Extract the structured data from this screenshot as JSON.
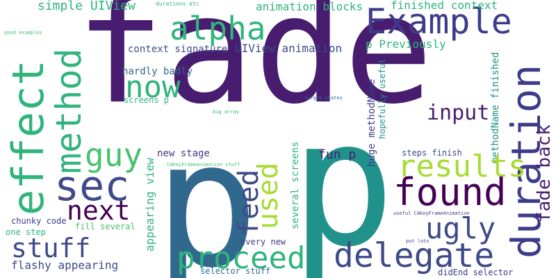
{
  "words": [
    "fade",
    "p",
    "p",
    "Example",
    "alpha",
    "duration",
    "effect",
    "method",
    "sec",
    "guy",
    "now",
    "used",
    "found",
    "results",
    "feed",
    "next",
    "stuff",
    "proceed",
    "delegate",
    "ugly",
    "fade back",
    "input",
    "simple UIView",
    "animation blocks",
    "finished context",
    "context signature",
    "UIView animation",
    "p Previously",
    "hardly badly",
    "screens p",
    "methodName finished",
    "huge methodName",
    "hopefully useful",
    "appearing view",
    "new stage",
    "fun p",
    "several screens",
    "steps finish",
    "chunky code",
    "one step",
    "fill several",
    "every new",
    "flashy appearing",
    "selector stuff",
    "didEnd selector",
    "durations etc",
    "good examples",
    "target states",
    "big array",
    "CAKeyFrameAnimation stuff",
    "useful CAKeyFrameAnimation",
    "put lots"
  ],
  "colors": {
    "dark_purple": "#481d6f",
    "indigo": "#3d3b8a",
    "slate_blue": "#3e4a89",
    "blue": "#31688e",
    "teal": "#21918c",
    "green": "#2fb47c",
    "light_green": "#48c16e",
    "lime": "#a8db34",
    "deep_purple": "#440154"
  }
}
